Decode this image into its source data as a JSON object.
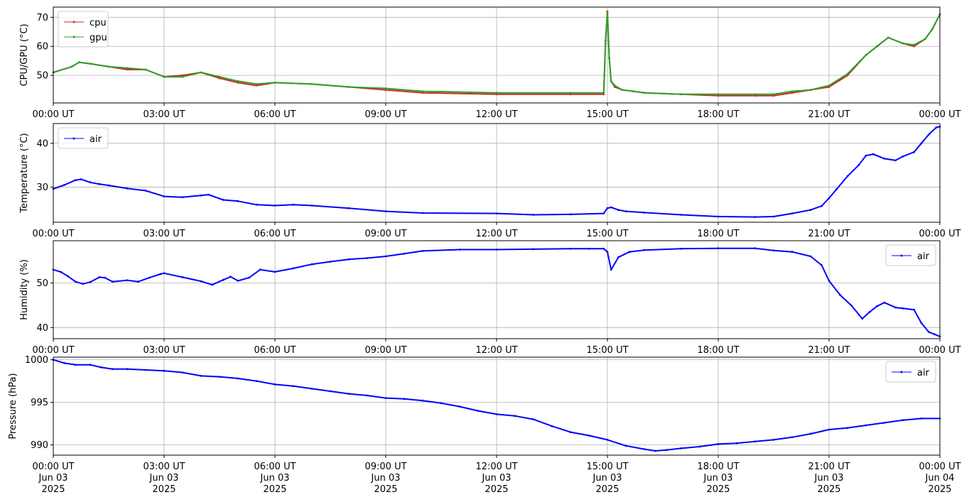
{
  "chart_data": [
    {
      "type": "line",
      "ylabel": "CPU/GPU (°C)",
      "ylim": [
        40.5,
        73.5
      ],
      "yticks": [
        50,
        60,
        70
      ],
      "xlim": [
        0,
        24
      ],
      "grid": true,
      "legend": "top-left",
      "series": [
        {
          "name": "cpu",
          "color": "#d62728",
          "x": [
            0,
            0.5,
            0.7,
            1.0,
            1.5,
            2.0,
            2.5,
            3.0,
            3.5,
            4.0,
            4.5,
            5.0,
            5.5,
            6.0,
            7.0,
            8.0,
            9.0,
            10.0,
            12.0,
            14.0,
            14.9,
            14.95,
            15.0,
            15.05,
            15.1,
            15.2,
            15.4,
            15.7,
            16.0,
            17.0,
            18.0,
            19.0,
            19.5,
            20.0,
            20.5,
            21.0,
            21.5,
            22.0,
            22.3,
            22.6,
            23.0,
            23.3,
            23.6,
            23.8,
            24.0
          ],
          "y": [
            51,
            53,
            54.5,
            54,
            53,
            52,
            52,
            49.5,
            50,
            51,
            49,
            47.5,
            46.5,
            47.5,
            47,
            46,
            45,
            44,
            43.5,
            43.5,
            43.5,
            62,
            72,
            56,
            48,
            46,
            45,
            44.5,
            44,
            43.5,
            43,
            43,
            43,
            44,
            45,
            46,
            50,
            57,
            60,
            63,
            61,
            60,
            62.5,
            66,
            71
          ]
        },
        {
          "name": "gpu",
          "color": "#2ca02c",
          "x": [
            0,
            0.5,
            0.7,
            1.0,
            1.5,
            2.0,
            2.5,
            3.0,
            3.5,
            4.0,
            4.5,
            5.0,
            5.5,
            6.0,
            7.0,
            8.0,
            9.0,
            10.0,
            12.0,
            14.0,
            14.9,
            14.95,
            15.0,
            15.05,
            15.1,
            15.2,
            15.4,
            15.7,
            16.0,
            17.0,
            18.0,
            19.0,
            19.5,
            20.0,
            20.5,
            21.0,
            21.5,
            22.0,
            22.3,
            22.6,
            23.0,
            23.3,
            23.6,
            23.8,
            24.0
          ],
          "y": [
            51,
            53,
            54.5,
            54,
            53,
            52.5,
            52,
            49.5,
            49.5,
            51,
            49.5,
            48,
            47,
            47.5,
            47,
            46,
            45.5,
            44.5,
            44,
            44,
            44,
            62,
            71.5,
            56,
            48,
            46.5,
            45,
            44.5,
            44,
            43.5,
            43.5,
            43.5,
            43.5,
            44.5,
            45,
            46.5,
            50.5,
            57,
            60,
            63,
            61,
            60.5,
            62.5,
            66,
            71
          ]
        }
      ]
    },
    {
      "type": "line",
      "ylabel": "Temperature (°C)",
      "ylim": [
        22,
        44.5
      ],
      "yticks": [
        30,
        40
      ],
      "xlim": [
        0,
        24
      ],
      "grid": true,
      "legend": "top-left",
      "series": [
        {
          "name": "air",
          "color": "#0000ff",
          "x": [
            0,
            0.3,
            0.6,
            0.75,
            1.0,
            1.25,
            1.5,
            2.0,
            2.5,
            3.0,
            3.5,
            4.0,
            4.2,
            4.6,
            5.0,
            5.5,
            6.0,
            6.5,
            7.0,
            8.0,
            9.0,
            10.0,
            12.0,
            13.0,
            14.0,
            14.9,
            15.0,
            15.1,
            15.3,
            15.5,
            16.0,
            17.0,
            18.0,
            19.0,
            19.5,
            20.0,
            20.5,
            20.8,
            21.0,
            21.2,
            21.5,
            21.8,
            22.0,
            22.2,
            22.5,
            22.8,
            23.0,
            23.3,
            23.5,
            23.7,
            23.9,
            24.0
          ],
          "y": [
            29.6,
            30.5,
            31.6,
            31.8,
            31.1,
            30.7,
            30.4,
            29.7,
            29.2,
            27.9,
            27.7,
            28.1,
            28.3,
            27.1,
            26.8,
            26.0,
            25.8,
            26.0,
            25.8,
            25.2,
            24.5,
            24.1,
            24.0,
            23.7,
            23.8,
            24.0,
            25.2,
            25.4,
            24.8,
            24.5,
            24.2,
            23.7,
            23.3,
            23.2,
            23.3,
            24.0,
            24.8,
            25.7,
            27.5,
            29.5,
            32.5,
            35.0,
            37.2,
            37.5,
            36.5,
            36.1,
            37.0,
            38.0,
            40.0,
            42.0,
            43.6,
            43.8
          ]
        }
      ]
    },
    {
      "type": "line",
      "ylabel": "Humidity (%)",
      "ylim": [
        37.5,
        59.5
      ],
      "yticks": [
        40,
        50
      ],
      "xlim": [
        0,
        24
      ],
      "grid": true,
      "legend": "top-right",
      "series": [
        {
          "name": "air",
          "color": "#0000ff",
          "x": [
            0,
            0.2,
            0.4,
            0.6,
            0.8,
            1.0,
            1.25,
            1.4,
            1.6,
            2.0,
            2.3,
            2.6,
            2.9,
            3.0,
            3.5,
            4.0,
            4.3,
            4.6,
            4.8,
            5.0,
            5.3,
            5.6,
            6.0,
            6.5,
            7.0,
            7.5,
            8.0,
            8.5,
            9.0,
            9.5,
            10.0,
            11.0,
            12.0,
            13.0,
            14.0,
            14.5,
            14.9,
            15.0,
            15.1,
            15.3,
            15.6,
            16.0,
            17.0,
            18.0,
            19.0,
            19.5,
            20.0,
            20.5,
            20.8,
            21.0,
            21.3,
            21.6,
            21.9,
            22.1,
            22.3,
            22.5,
            22.8,
            23.0,
            23.3,
            23.5,
            23.7,
            23.85,
            24.0
          ],
          "y": [
            53,
            52.5,
            51.5,
            50.3,
            49.8,
            50.2,
            51.3,
            51.2,
            50.3,
            50.6,
            50.3,
            51.2,
            52,
            52.2,
            51.3,
            50.4,
            49.6,
            50.7,
            51.4,
            50.5,
            51.2,
            53,
            52.5,
            53.3,
            54.2,
            54.8,
            55.3,
            55.6,
            56,
            56.6,
            57.2,
            57.5,
            57.5,
            57.6,
            57.7,
            57.7,
            57.7,
            57,
            53,
            55.8,
            57,
            57.4,
            57.7,
            57.8,
            57.8,
            57.3,
            57,
            56,
            54,
            50.5,
            47.3,
            45,
            42,
            43.5,
            44.8,
            45.6,
            44.5,
            44.3,
            44,
            41,
            39,
            38.5,
            38
          ]
        }
      ]
    },
    {
      "type": "line",
      "ylabel": "Pressure (hPa)",
      "ylim": [
        988.8,
        1000.3
      ],
      "yticks": [
        990,
        995,
        1000
      ],
      "xlim": [
        0,
        24
      ],
      "grid": true,
      "legend": "top-right",
      "series": [
        {
          "name": "air",
          "color": "#0000ff",
          "x": [
            0,
            0.3,
            0.6,
            1.0,
            1.3,
            1.6,
            2.0,
            2.5,
            3.0,
            3.5,
            4.0,
            4.5,
            5.0,
            5.5,
            6.0,
            6.5,
            7.0,
            7.5,
            8.0,
            8.5,
            9.0,
            9.5,
            10.0,
            10.5,
            11.0,
            11.5,
            12.0,
            12.5,
            13.0,
            13.5,
            14.0,
            14.5,
            15.0,
            15.5,
            16.0,
            16.3,
            16.6,
            17.0,
            17.5,
            18.0,
            18.5,
            19.0,
            19.5,
            20.0,
            20.5,
            21.0,
            21.5,
            22.0,
            22.5,
            23.0,
            23.5,
            24.0
          ],
          "y": [
            1000,
            999.6,
            999.4,
            999.4,
            999.1,
            998.9,
            998.9,
            998.8,
            998.7,
            998.5,
            998.1,
            998.0,
            997.8,
            997.5,
            997.1,
            996.9,
            996.6,
            996.3,
            996.0,
            995.8,
            995.5,
            995.4,
            995.2,
            994.9,
            994.5,
            994.0,
            993.6,
            993.4,
            993.0,
            992.2,
            991.5,
            991.1,
            990.6,
            989.9,
            989.5,
            989.3,
            989.4,
            989.6,
            989.8,
            990.1,
            990.2,
            990.4,
            990.6,
            990.9,
            991.3,
            991.8,
            992.0,
            992.3,
            992.6,
            992.9,
            993.1,
            993.1
          ]
        }
      ]
    }
  ],
  "x_axis": {
    "ticks": [
      0,
      3,
      6,
      9,
      12,
      15,
      18,
      21,
      24
    ],
    "time_labels": [
      "00:00 UT",
      "03:00 UT",
      "06:00 UT",
      "09:00 UT",
      "12:00 UT",
      "15:00 UT",
      "18:00 UT",
      "21:00 UT",
      "00:00 UT"
    ],
    "date_labels": [
      "Jun 03",
      "Jun 03",
      "Jun 03",
      "Jun 03",
      "Jun 03",
      "Jun 03",
      "Jun 03",
      "Jun 03",
      "Jun 04"
    ],
    "year_labels": [
      "2025",
      "2025",
      "2025",
      "2025",
      "2025",
      "2025",
      "2025",
      "2025",
      "2025"
    ]
  }
}
